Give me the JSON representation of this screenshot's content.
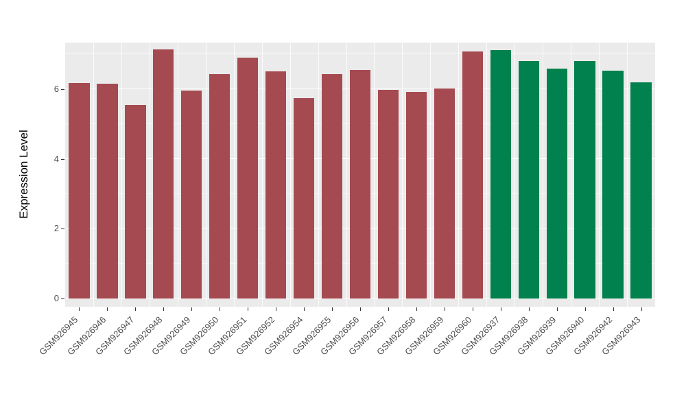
{
  "chart_data": {
    "type": "bar",
    "title": "",
    "xlabel": "",
    "ylabel": "Expression Level",
    "categories": [
      "GSM926945",
      "GSM926946",
      "GSM926947",
      "GSM926948",
      "GSM926949",
      "GSM926950",
      "GSM926951",
      "GSM926952",
      "GSM926954",
      "GSM926955",
      "GSM926956",
      "GSM926957",
      "GSM926958",
      "GSM926959",
      "GSM926960",
      "GSM926937",
      "GSM926938",
      "GSM926939",
      "GSM926940",
      "GSM926942",
      "GSM926943"
    ],
    "values": [
      6.17,
      6.15,
      5.55,
      7.15,
      5.96,
      6.43,
      6.9,
      6.52,
      5.75,
      6.43,
      6.56,
      5.98,
      5.93,
      6.02,
      7.08,
      7.12,
      6.8,
      6.6,
      6.8,
      6.53,
      6.2
    ],
    "bar_colors": [
      "#A64A51",
      "#A64A51",
      "#A64A51",
      "#A64A51",
      "#A64A51",
      "#A64A51",
      "#A64A51",
      "#A64A51",
      "#A64A51",
      "#A64A51",
      "#A64A51",
      "#A64A51",
      "#A64A51",
      "#A64A51",
      "#A64A51",
      "#00814E",
      "#00814E",
      "#00814E",
      "#00814E",
      "#00814E",
      "#00814E"
    ],
    "group_colors": {
      "group1": "#A64A51",
      "group2": "#00814E"
    },
    "yticks": [
      0,
      2,
      4,
      6
    ],
    "ytick_labels": [
      "0",
      "2",
      "4",
      "6"
    ],
    "minor_gridlines": [
      1,
      3,
      5,
      7
    ],
    "ylim": [
      0,
      7.35
    ],
    "panel_background": "#EBEBEB",
    "grid_color": "#FFFFFF",
    "tick_label_color": "#4D4D4D",
    "legend": "none",
    "grid": "on"
  }
}
